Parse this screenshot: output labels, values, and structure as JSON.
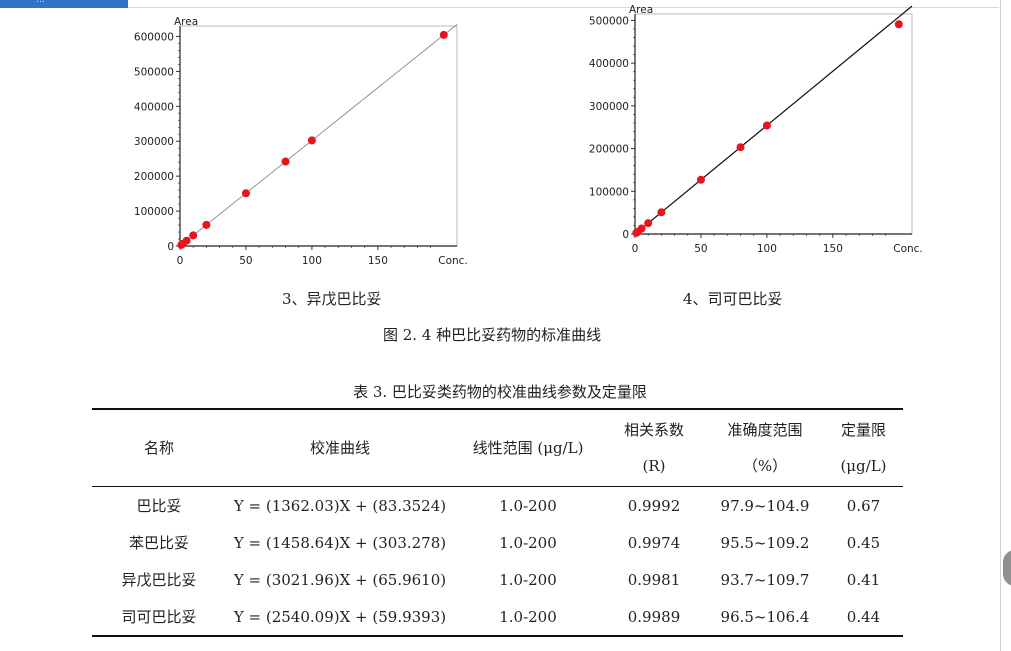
{
  "window": {
    "tab_text": "…"
  },
  "figure": {
    "caption": "图 2. 4 种巴比妥药物的标准曲线",
    "panels": [
      {
        "caption": "3、异戊巴比妥"
      },
      {
        "caption": "4、司可巴比妥"
      }
    ]
  },
  "chart_data": [
    {
      "type": "scatter",
      "title": "",
      "xlabel": "Conc.",
      "ylabel": "Area",
      "x_ticks": [
        0,
        50,
        100,
        150
      ],
      "y_ticks": [
        0,
        100000,
        200000,
        300000,
        400000,
        500000,
        600000
      ],
      "x_tick_labels": [
        "0",
        "50",
        "100",
        "150",
        "Conc."
      ],
      "y_tick_labels": [
        "0",
        "100000",
        "200000",
        "300000",
        "400000",
        "500000",
        "600000"
      ],
      "xlim": [
        0,
        210
      ],
      "ylim": [
        0,
        630000
      ],
      "points": [
        [
          1,
          3100
        ],
        [
          2,
          6100
        ],
        [
          5,
          15200
        ],
        [
          10,
          30300
        ],
        [
          20,
          60500
        ],
        [
          50,
          151000
        ],
        [
          80,
          241800
        ],
        [
          100,
          302300
        ],
        [
          200,
          604500
        ]
      ],
      "fit": {
        "slope": 3021.96,
        "intercept": 65.961
      },
      "grid": false
    },
    {
      "type": "scatter",
      "title": "",
      "xlabel": "Conc.",
      "ylabel": "Area",
      "x_ticks": [
        0,
        50,
        100,
        150
      ],
      "y_ticks": [
        0,
        100000,
        200000,
        300000,
        400000,
        500000
      ],
      "x_tick_labels": [
        "0",
        "50",
        "100",
        "150",
        "Conc."
      ],
      "y_tick_labels": [
        "0",
        "100000",
        "200000",
        "300000",
        "400000",
        "500000"
      ],
      "xlim": [
        0,
        210
      ],
      "ylim": [
        0,
        515000
      ],
      "points": [
        [
          1,
          2600
        ],
        [
          2,
          5100
        ],
        [
          5,
          12800
        ],
        [
          10,
          25500
        ],
        [
          20,
          50800
        ],
        [
          50,
          127000
        ],
        [
          80,
          203200
        ],
        [
          100,
          254000
        ],
        [
          200,
          491000
        ]
      ],
      "fit": {
        "slope": 2540.09,
        "intercept": 59.9393
      },
      "grid": false
    }
  ],
  "table": {
    "title": "表 3. 巴比妥类药物的校准曲线参数及定量限",
    "headers": {
      "name": "名称",
      "curve": "校准曲线",
      "range": "线性范围 (μg/L)",
      "r_line1": "相关系数",
      "r_line2": "(R)",
      "acc_line1": "准确度范围",
      "acc_line2": "（%）",
      "loq_line1": "定量限",
      "loq_line2": "(μg/L)"
    },
    "rows": [
      {
        "name": "巴比妥",
        "curve": "Y = (1362.03)X + (83.3524)",
        "range": "1.0-200",
        "r": "0.9992",
        "accuracy": "97.9~104.9",
        "loq": "0.67"
      },
      {
        "name": "苯巴比妥",
        "curve": "Y = (1458.64)X + (303.278)",
        "range": "1.0-200",
        "r": "0.9974",
        "accuracy": "95.5~109.2",
        "loq": "0.45"
      },
      {
        "name": "异戊巴比妥",
        "curve": "Y = (3021.96)X + (65.9610)",
        "range": "1.0-200",
        "r": "0.9981",
        "accuracy": "93.7~109.7",
        "loq": "0.41"
      },
      {
        "name": "司可巴比妥",
        "curve": "Y = (2540.09)X + (59.9393)",
        "range": "1.0-200",
        "r": "0.9989",
        "accuracy": "96.5~106.4",
        "loq": "0.44"
      }
    ]
  }
}
